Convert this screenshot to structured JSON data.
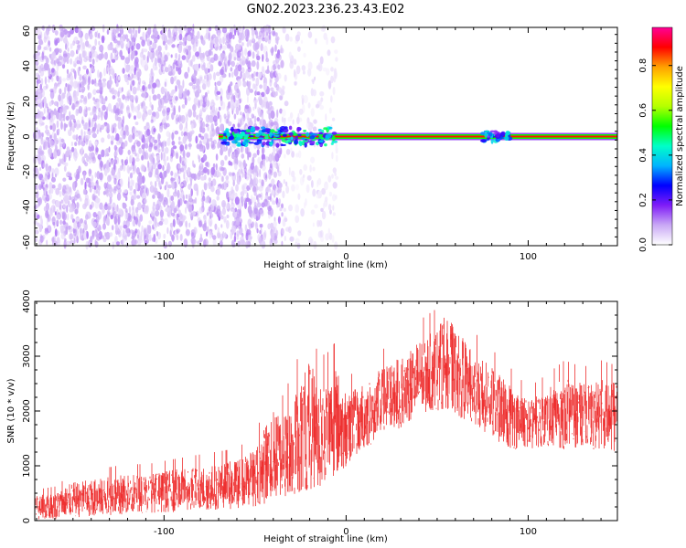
{
  "title": "GN02.2023.236.23.43.E02",
  "chart_data": [
    {
      "type": "heatmap",
      "title": "GN02.2023.236.23.43.E02",
      "xlabel": "Height of straight line (km)",
      "ylabel": "Frequency (Hz)",
      "xlim": [
        -171,
        149
      ],
      "ylim": [
        -62,
        62
      ],
      "x_ticks": [
        -100,
        0,
        100
      ],
      "y_ticks": [
        -60,
        -40,
        -20,
        0,
        20,
        40,
        60
      ],
      "colorbar": {
        "label": "Normalized spectral amplitude",
        "range": [
          0,
          0.97
        ],
        "ticks": [
          0.0,
          0.2,
          0.4,
          0.6,
          0.8
        ],
        "colormap": [
          "#ffffff",
          "#c9a8f5",
          "#7f1cf7",
          "#0000ff",
          "#00b4ff",
          "#00ffc8",
          "#00ff00",
          "#b4ff00",
          "#ffff00",
          "#ffa000",
          "#ff0000",
          "#ff0096"
        ]
      },
      "features": [
        {
          "x_from": -171,
          "x_to": -35,
          "freq_from": -62,
          "freq_to": 62,
          "amplitude": 0.05,
          "note": ""
        },
        {
          "x_from": -35,
          "x_to": -5,
          "freq_from": -62,
          "freq_to": 62,
          "amplitude": 0.02,
          "note": ""
        },
        {
          "x_from": -70,
          "x_to": 149,
          "freq_from": -1,
          "freq_to": 1,
          "amplitude": 0.9,
          "note": ""
        },
        {
          "x_from": -68,
          "x_to": -5,
          "freq_from": -5,
          "freq_to": 5,
          "amplitude": 0.35,
          "note": ""
        },
        {
          "x_from": 75,
          "x_to": 90,
          "freq_from": -3,
          "freq_to": 3,
          "amplitude": 0.3,
          "note": ""
        }
      ]
    },
    {
      "type": "line",
      "title": "",
      "xlabel": "Height of straight line (km)",
      "ylabel": "SNR (10 * v/v)",
      "xlim": [
        -171,
        149
      ],
      "ylim": [
        0,
        4000
      ],
      "x_ticks": [
        -100,
        0,
        100
      ],
      "y_ticks": [
        0,
        1000,
        2000,
        3000,
        4000
      ],
      "series": [
        {
          "color": "#ee3030",
          "x": [
            -171,
            -160,
            -150,
            -140,
            -130,
            -120,
            -110,
            -100,
            -90,
            -80,
            -70,
            -60,
            -50,
            -45,
            -40,
            -35,
            -30,
            -25,
            -20,
            -15,
            -10,
            -5,
            0,
            10,
            20,
            30,
            40,
            50,
            55,
            60,
            70,
            80,
            90,
            100,
            110,
            120,
            130,
            140,
            149
          ],
          "y_low": [
            0,
            20,
            50,
            80,
            100,
            120,
            140,
            150,
            150,
            170,
            200,
            220,
            260,
            300,
            350,
            400,
            450,
            500,
            550,
            600,
            700,
            800,
            1000,
            1300,
            1500,
            1700,
            1900,
            2000,
            2050,
            1950,
            1700,
            1500,
            1300,
            1300,
            1350,
            1300,
            1300,
            1300,
            1200
          ],
          "y_high": [
            450,
            500,
            700,
            750,
            800,
            850,
            850,
            900,
            950,
            1000,
            1050,
            1100,
            1300,
            1700,
            2000,
            1900,
            2200,
            2600,
            3000,
            2500,
            2600,
            2800,
            2300,
            2500,
            2800,
            3000,
            3300,
            3500,
            3800,
            3500,
            3100,
            2800,
            2500,
            2200,
            2400,
            2600,
            2500,
            2600,
            2500
          ]
        }
      ]
    }
  ]
}
